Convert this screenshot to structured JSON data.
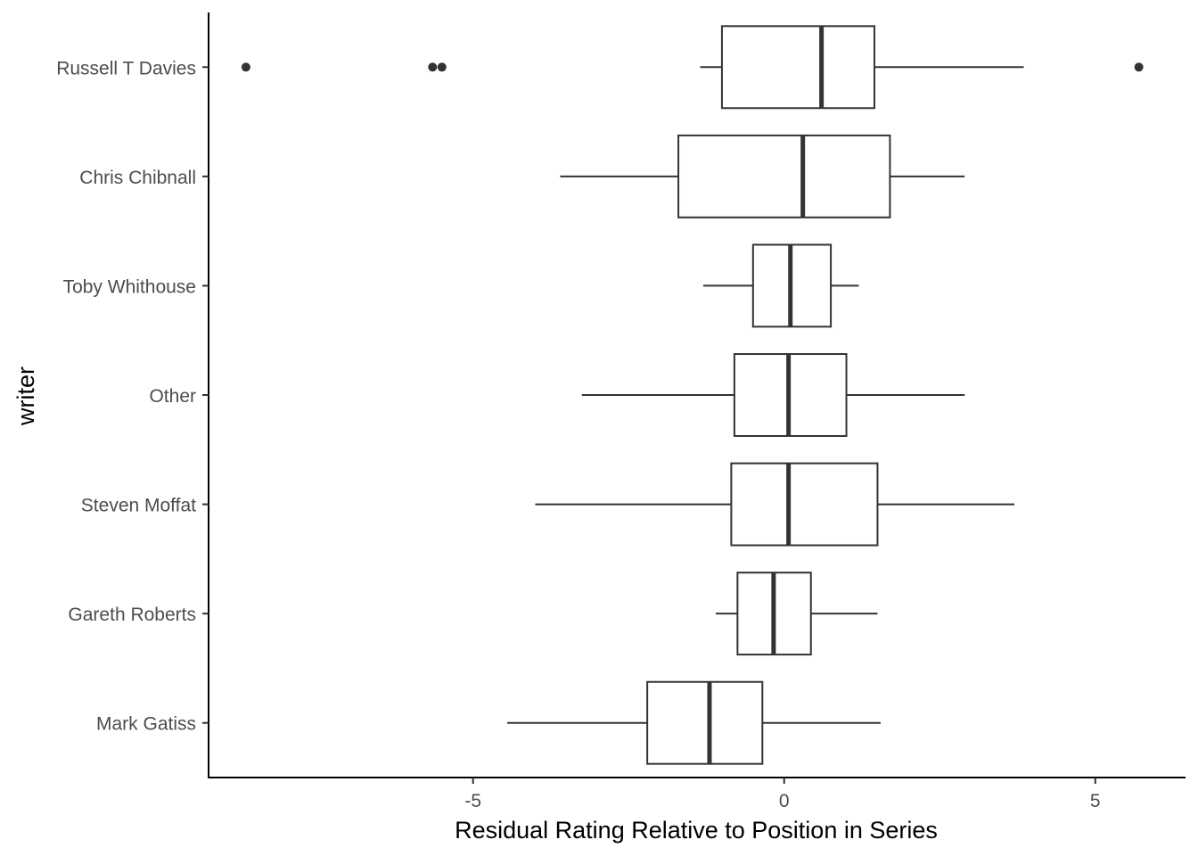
{
  "chart_data": {
    "type": "boxplot",
    "orientation": "horizontal",
    "xlabel": "Residual Rating Relative to Position in Series",
    "ylabel": "writer",
    "xlim": [
      -9.25,
      6.45
    ],
    "xticks": [
      -5,
      0,
      5
    ],
    "xtick_labels": [
      "-5",
      "0",
      "5"
    ],
    "grid": false,
    "colors": {
      "box": "#333333",
      "axis": "#000000",
      "tick_label": "#4d4d4d"
    },
    "categories": [
      "Russell T Davies",
      "Chris Chibnall",
      "Toby Whithouse",
      "Other",
      "Steven Moffat",
      "Gareth Roberts",
      "Mark Gatiss"
    ],
    "boxes": [
      {
        "label": "Russell T Davies",
        "whisker_low": -1.35,
        "q1": -1.0,
        "median": 0.6,
        "q3": 1.45,
        "whisker_high": 3.85,
        "outliers": [
          -8.65,
          -5.65,
          -5.5,
          5.7
        ]
      },
      {
        "label": "Chris Chibnall",
        "whisker_low": -3.6,
        "q1": -1.7,
        "median": 0.3,
        "q3": 1.7,
        "whisker_high": 2.9,
        "outliers": []
      },
      {
        "label": "Toby Whithouse",
        "whisker_low": -1.3,
        "q1": -0.5,
        "median": 0.1,
        "q3": 0.75,
        "whisker_high": 1.2,
        "outliers": []
      },
      {
        "label": "Other",
        "whisker_low": -3.25,
        "q1": -0.8,
        "median": 0.07,
        "q3": 1.0,
        "whisker_high": 2.9,
        "outliers": []
      },
      {
        "label": "Steven Moffat",
        "whisker_low": -4.0,
        "q1": -0.85,
        "median": 0.07,
        "q3": 1.5,
        "whisker_high": 3.7,
        "outliers": []
      },
      {
        "label": "Gareth Roberts",
        "whisker_low": -1.1,
        "q1": -0.75,
        "median": -0.17,
        "q3": 0.43,
        "whisker_high": 1.5,
        "outliers": []
      },
      {
        "label": "Mark Gatiss",
        "whisker_low": -4.45,
        "q1": -2.2,
        "median": -1.2,
        "q3": -0.35,
        "whisker_high": 1.55,
        "outliers": []
      }
    ]
  }
}
